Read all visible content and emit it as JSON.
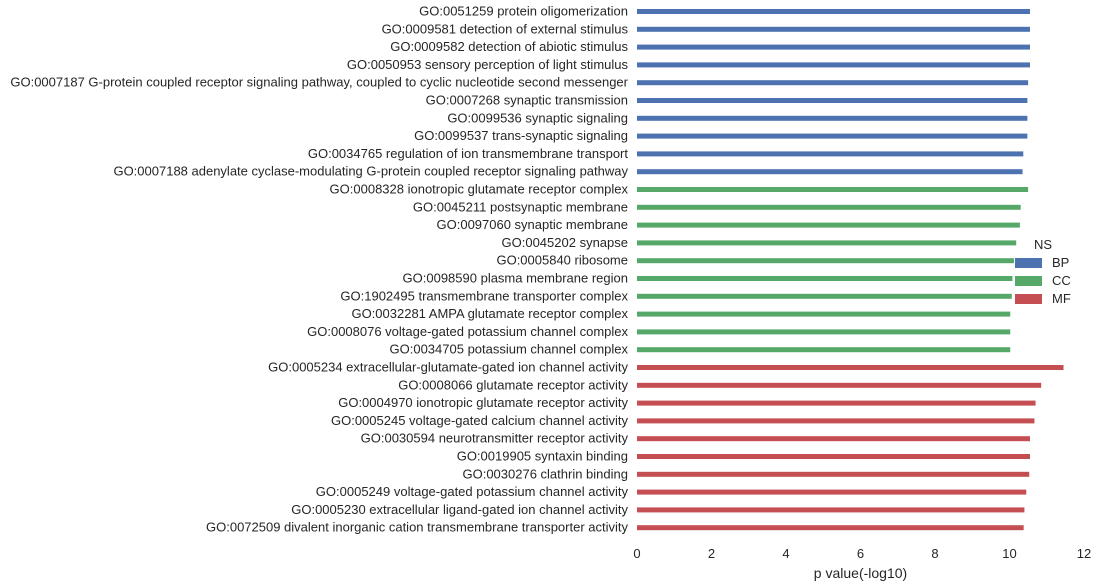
{
  "chart_data": {
    "type": "bar",
    "orientation": "horizontal",
    "xlabel": "p value(-log10)",
    "xlim": [
      0,
      12
    ],
    "xticks": [
      0,
      2,
      4,
      6,
      8,
      10,
      12
    ],
    "grid": false,
    "legend": {
      "title": "NS",
      "placement": "right",
      "entries": [
        "BP",
        "CC",
        "MF"
      ]
    },
    "colors": {
      "BP": "#4c72b0",
      "CC": "#55a868",
      "MF": "#c44e52"
    },
    "rows": [
      {
        "label": "GO:0051259 protein oligomerization",
        "group": "BP",
        "value": 10.55
      },
      {
        "label": "GO:0009581 detection of external stimulus",
        "group": "BP",
        "value": 10.55
      },
      {
        "label": "GO:0009582 detection of abiotic stimulus",
        "group": "BP",
        "value": 10.55
      },
      {
        "label": "GO:0050953 sensory perception of light stimulus",
        "group": "BP",
        "value": 10.55
      },
      {
        "label": "GO:0007187 G-protein coupled receptor signaling pathway, coupled to cyclic nucleotide second messenger",
        "group": "BP",
        "value": 10.5
      },
      {
        "label": "GO:0007268 synaptic transmission",
        "group": "BP",
        "value": 10.48
      },
      {
        "label": "GO:0099536 synaptic signaling",
        "group": "BP",
        "value": 10.48
      },
      {
        "label": "GO:0099537 trans-synaptic signaling",
        "group": "BP",
        "value": 10.48
      },
      {
        "label": "GO:0034765 regulation of ion transmembrane transport",
        "group": "BP",
        "value": 10.37
      },
      {
        "label": "GO:0007188 adenylate cyclase-modulating G-protein coupled receptor signaling pathway",
        "group": "BP",
        "value": 10.35
      },
      {
        "label": "GO:0008328 ionotropic glutamate receptor complex",
        "group": "CC",
        "value": 10.5
      },
      {
        "label": "GO:0045211 postsynaptic membrane",
        "group": "CC",
        "value": 10.3
      },
      {
        "label": "GO:0097060 synaptic membrane",
        "group": "CC",
        "value": 10.28
      },
      {
        "label": "GO:0045202 synapse",
        "group": "CC",
        "value": 10.18
      },
      {
        "label": "GO:0005840 ribosome",
        "group": "CC",
        "value": 10.12
      },
      {
        "label": "GO:0098590 plasma membrane region",
        "group": "CC",
        "value": 10.08
      },
      {
        "label": "GO:1902495 transmembrane transporter complex",
        "group": "CC",
        "value": 10.06
      },
      {
        "label": "GO:0032281 AMPA glutamate receptor complex",
        "group": "CC",
        "value": 10.02
      },
      {
        "label": "GO:0008076 voltage-gated potassium channel complex",
        "group": "CC",
        "value": 10.02
      },
      {
        "label": "GO:0034705 potassium channel complex",
        "group": "CC",
        "value": 10.02
      },
      {
        "label": "GO:0005234 extracellular-glutamate-gated ion channel activity",
        "group": "MF",
        "value": 11.45
      },
      {
        "label": "GO:0008066 glutamate receptor activity",
        "group": "MF",
        "value": 10.85
      },
      {
        "label": "GO:0004970 ionotropic glutamate receptor activity",
        "group": "MF",
        "value": 10.7
      },
      {
        "label": "GO:0005245 voltage-gated calcium channel activity",
        "group": "MF",
        "value": 10.67
      },
      {
        "label": "GO:0030594 neurotransmitter receptor activity",
        "group": "MF",
        "value": 10.55
      },
      {
        "label": "GO:0019905 syntaxin binding",
        "group": "MF",
        "value": 10.55
      },
      {
        "label": "GO:0030276 clathrin binding",
        "group": "MF",
        "value": 10.53
      },
      {
        "label": "GO:0005249 voltage-gated potassium channel activity",
        "group": "MF",
        "value": 10.45
      },
      {
        "label": "GO:0005230 extracellular ligand-gated ion channel activity",
        "group": "MF",
        "value": 10.4
      },
      {
        "label": "GO:0072509 divalent inorganic cation transmembrane transporter activity",
        "group": "MF",
        "value": 10.38
      }
    ]
  }
}
